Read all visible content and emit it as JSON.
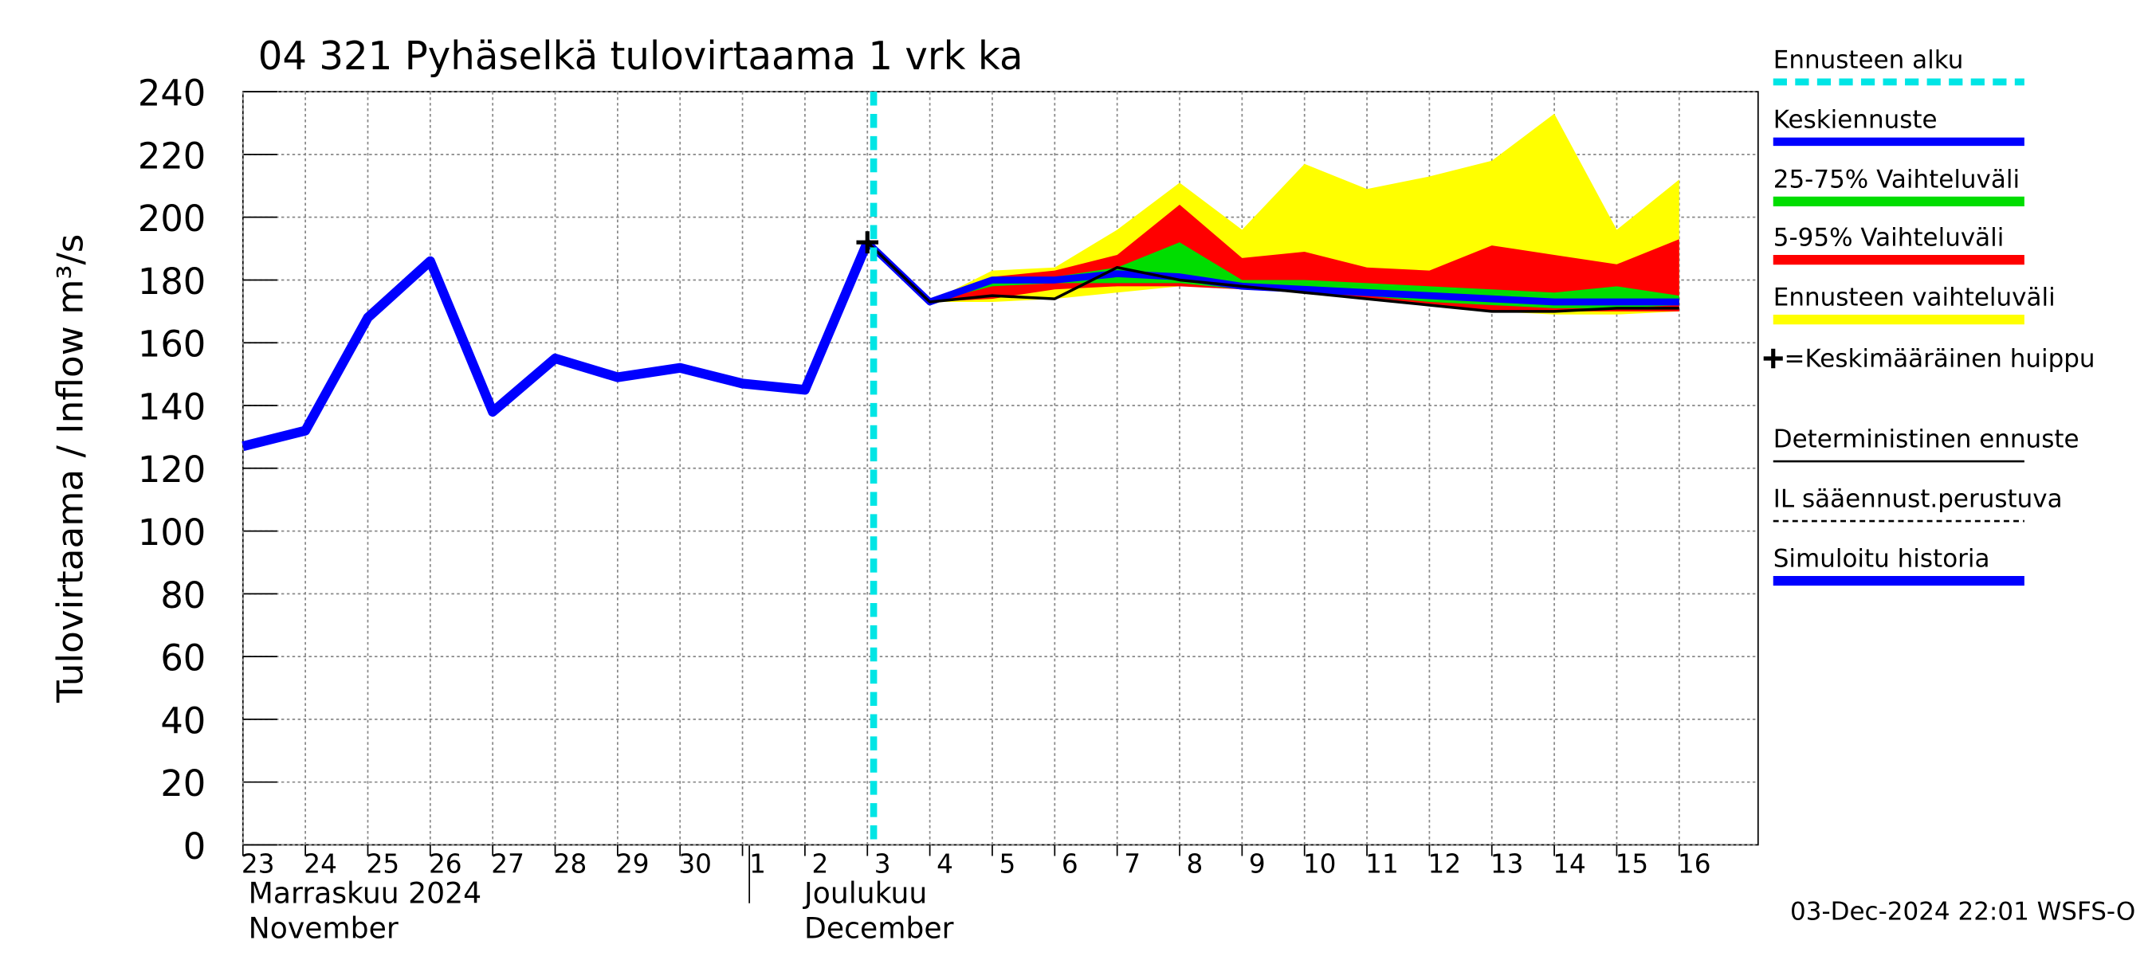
{
  "chart_data": {
    "type": "line",
    "title": "04 321 Pyhäselkä tulovirtaama 1 vrk ka",
    "ylabel": "Tulovirtaama / Inflow    m³/s",
    "ylim": [
      0,
      240
    ],
    "yticks": [
      0,
      20,
      40,
      60,
      80,
      100,
      120,
      140,
      160,
      180,
      200,
      220,
      240
    ],
    "categories": [
      "23",
      "24",
      "25",
      "26",
      "27",
      "28",
      "29",
      "30",
      "1",
      "2",
      "3",
      "4",
      "5",
      "6",
      "7",
      "8",
      "9",
      "10",
      "11",
      "12",
      "13",
      "14",
      "15",
      "16"
    ],
    "months": [
      {
        "label": "Marraskuu 2024",
        "label_en": "November",
        "index": 0
      },
      {
        "label": "Joulukuu",
        "label_en": "December",
        "index": 8
      }
    ],
    "forecast_start": {
      "name": "Ennusteen alku",
      "value": 10.1,
      "color": "#00e5e5"
    },
    "bands": [
      {
        "name": "Ennusteen vaihteluväli",
        "color": "#ffff00",
        "high": [
          null,
          null,
          null,
          null,
          null,
          null,
          null,
          null,
          null,
          null,
          192,
          173,
          183,
          184,
          196,
          211,
          196,
          217,
          209,
          213,
          218,
          233,
          196,
          212
        ],
        "low": [
          null,
          null,
          null,
          null,
          null,
          null,
          null,
          null,
          null,
          null,
          192,
          173,
          173,
          174,
          176,
          178,
          178,
          177,
          175,
          172,
          170,
          169,
          169,
          170
        ]
      },
      {
        "name": "5-95% Vaihteluväli",
        "color": "#ff0000",
        "high": [
          null,
          null,
          null,
          null,
          null,
          null,
          null,
          null,
          null,
          null,
          192,
          173,
          181,
          183,
          188,
          204,
          187,
          189,
          184,
          183,
          191,
          188,
          185,
          193
        ],
        "low": [
          null,
          null,
          null,
          null,
          null,
          null,
          null,
          null,
          null,
          null,
          192,
          173,
          174,
          177,
          178,
          178,
          177,
          176,
          174,
          172,
          170,
          170,
          170,
          170
        ]
      },
      {
        "name": "25-75% Vaihteluväli",
        "color": "#00dd00",
        "high": [
          null,
          null,
          null,
          null,
          null,
          null,
          null,
          null,
          null,
          null,
          192,
          173,
          180,
          181,
          184,
          192,
          180,
          180,
          179,
          178,
          177,
          176,
          178,
          175
        ],
        "low": [
          null,
          null,
          null,
          null,
          null,
          null,
          null,
          null,
          null,
          null,
          192,
          173,
          178,
          179,
          179,
          179,
          177,
          176,
          175,
          173,
          172,
          171,
          171,
          172
        ]
      }
    ],
    "series": [
      {
        "name": "Simuloitu historia",
        "color": "#0000ff",
        "values": [
          127,
          132,
          168,
          186,
          138,
          155,
          149,
          152,
          147,
          145,
          192,
          null,
          null,
          null,
          null,
          null,
          null,
          null,
          null,
          null,
          null,
          null,
          null,
          null
        ]
      },
      {
        "name": "Keskiennuste",
        "color": "#0000ff",
        "values": [
          null,
          null,
          null,
          null,
          null,
          null,
          null,
          null,
          null,
          null,
          192,
          173,
          180,
          180,
          182,
          181,
          178,
          177,
          176,
          175,
          174,
          173,
          173,
          173
        ]
      },
      {
        "name": "Deterministinen ennuste",
        "color": "#000000",
        "values": [
          null,
          null,
          null,
          null,
          null,
          null,
          null,
          null,
          null,
          null,
          192,
          173,
          175,
          174,
          184,
          180,
          178,
          176,
          174,
          172,
          170,
          170,
          171,
          171
        ]
      }
    ],
    "peak": {
      "name": "=Keskimääräinen huippu",
      "index": 10,
      "value": 192
    },
    "il_forecast": {
      "name": "IL sääennust.perustuva"
    },
    "timestamp": "03-Dec-2024 22:01 WSFS-O"
  }
}
